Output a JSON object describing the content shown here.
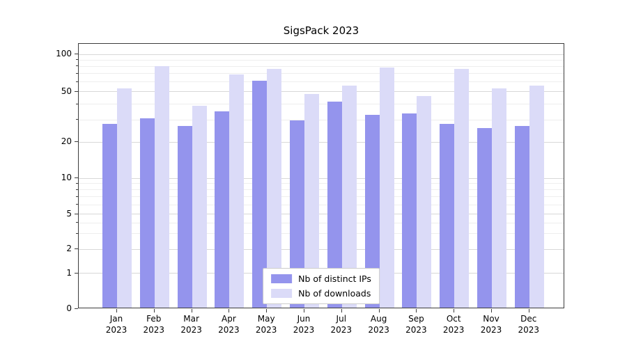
{
  "chart_data": {
    "type": "bar",
    "title": "SigsPack 2023",
    "categories": [
      "Jan 2023",
      "Feb 2023",
      "Mar 2023",
      "Apr 2023",
      "May 2023",
      "Jun 2023",
      "Jul 2023",
      "Aug 2023",
      "Sep 2023",
      "Oct 2023",
      "Nov 2023",
      "Dec 2023"
    ],
    "series": [
      {
        "name": "Nb of distinct IPs",
        "color": "#9494ed",
        "values": [
          27,
          30,
          26,
          34,
          60,
          29,
          41,
          32,
          33,
          27,
          25,
          26
        ]
      },
      {
        "name": "Nb of downloads",
        "color": "#dbdbf8",
        "values": [
          52,
          78,
          38,
          67,
          74,
          47,
          55,
          76,
          45,
          74,
          52,
          55
        ]
      }
    ],
    "yscale": "symlog",
    "yticks": [
      0,
      1,
      2,
      5,
      10,
      20,
      50,
      100
    ],
    "minor_yticks": [
      3,
      4,
      6,
      7,
      8,
      9,
      30,
      40,
      60,
      70,
      80,
      90
    ],
    "ylim": [
      0,
      124
    ],
    "grid": true,
    "legend_position": "lower center"
  }
}
